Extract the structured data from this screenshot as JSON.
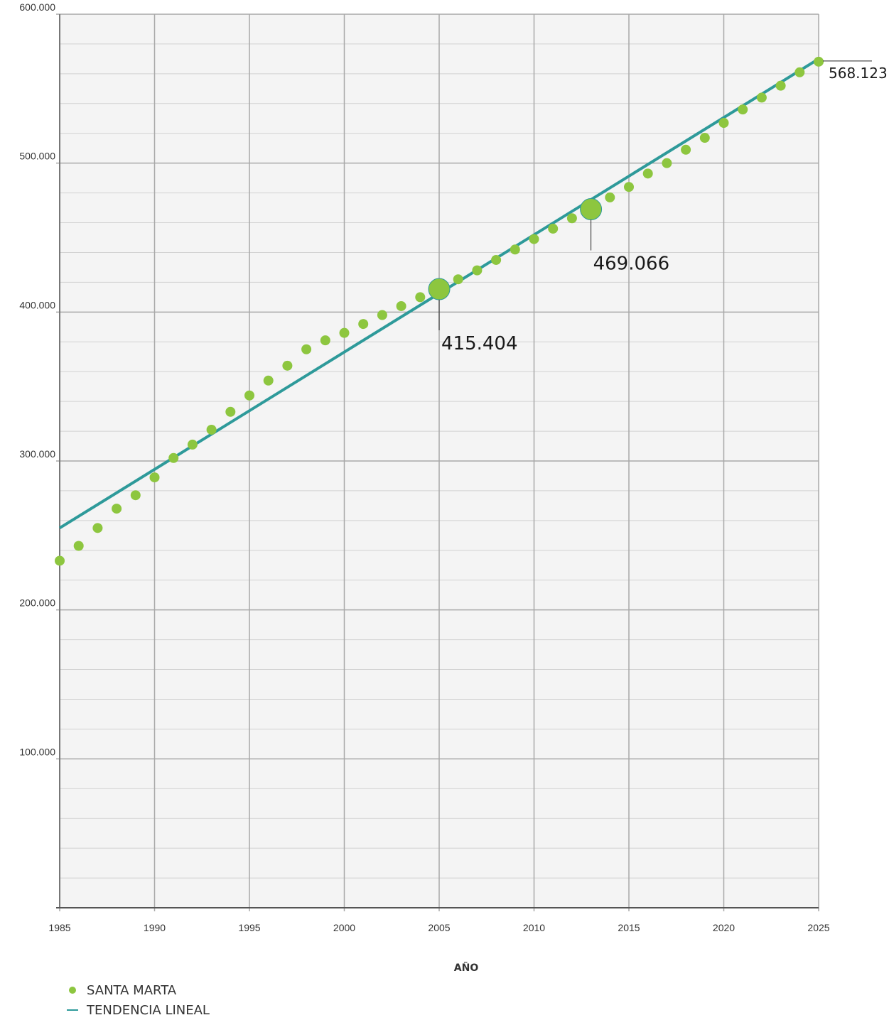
{
  "chart_data": {
    "type": "scatter",
    "xlabel": "AÑO",
    "ylabel": "",
    "xlim": [
      1985,
      2025
    ],
    "ylim": [
      0,
      600000
    ],
    "x_ticks": [
      "1985",
      "1990",
      "1995",
      "2000",
      "2005",
      "2010",
      "2015",
      "2020",
      "2025"
    ],
    "y_ticks": [
      "100.000",
      "200.000",
      "300.000",
      "400.000",
      "500.000",
      "600.000"
    ],
    "grid": true,
    "legend_position": "bottom-left",
    "series": [
      {
        "name": "SANTA MARTA",
        "kind": "scatter",
        "color": "#8dc63f",
        "x": [
          1985,
          1986,
          1987,
          1988,
          1989,
          1990,
          1991,
          1992,
          1993,
          1994,
          1995,
          1996,
          1997,
          1998,
          1999,
          2000,
          2001,
          2002,
          2003,
          2004,
          2005,
          2006,
          2007,
          2008,
          2009,
          2010,
          2011,
          2012,
          2013,
          2014,
          2015,
          2016,
          2017,
          2018,
          2019,
          2020,
          2021,
          2022,
          2023,
          2024,
          2025
        ],
        "values": [
          233000,
          243000,
          255000,
          268000,
          277000,
          289000,
          302000,
          311000,
          321000,
          333000,
          344000,
          354000,
          364000,
          375000,
          381000,
          386000,
          392000,
          398000,
          404000,
          410000,
          415404,
          422000,
          428000,
          435000,
          442000,
          449000,
          456000,
          463000,
          469066,
          477000,
          484000,
          493000,
          500000,
          509000,
          517000,
          527000,
          536000,
          544000,
          552000,
          561000,
          568123
        ]
      },
      {
        "name": "TENDENCIA LINEAL",
        "kind": "line",
        "color": "#2e9a9a",
        "x": [
          1985,
          2025
        ],
        "values": [
          255000,
          570000
        ]
      }
    ],
    "annotations": [
      {
        "x": 2005,
        "value": 415404,
        "label": "415.404"
      },
      {
        "x": 2013,
        "value": 469066,
        "label": "469.066"
      },
      {
        "x": 2025,
        "value": 568123,
        "label": "568.123"
      }
    ]
  }
}
